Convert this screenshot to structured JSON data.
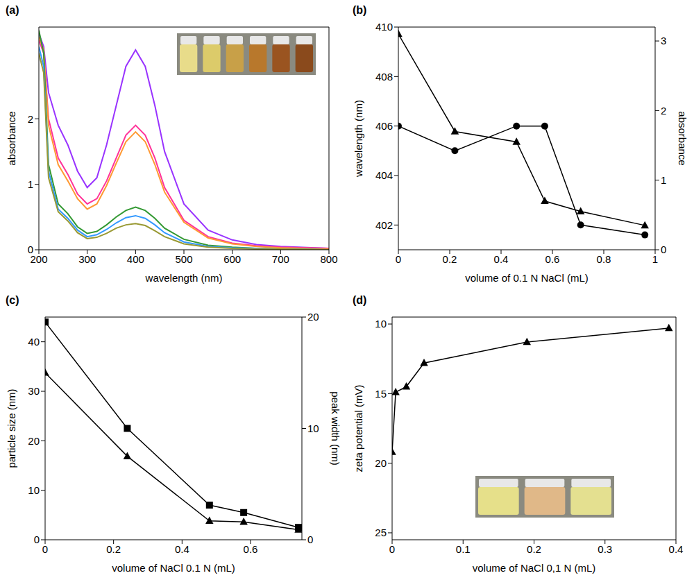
{
  "chart_data": [
    {
      "type": "line",
      "title": "(a)",
      "xlabel": "wavelength (nm)",
      "ylabel": "absorbance",
      "x": [
        200,
        210,
        220,
        240,
        260,
        280,
        300,
        320,
        340,
        360,
        380,
        400,
        420,
        440,
        460,
        500,
        550,
        600,
        650,
        700,
        800
      ],
      "xlim": [
        200,
        800
      ],
      "xticks": [
        200,
        300,
        400,
        500,
        600,
        700,
        800
      ],
      "ylim": [
        0,
        3.4
      ],
      "yticks": [
        0,
        1,
        2
      ],
      "series": [
        {
          "color": "#9933ff",
          "values": [
            3.3,
            3.1,
            2.4,
            1.9,
            1.6,
            1.2,
            0.95,
            1.1,
            1.6,
            2.2,
            2.8,
            3.05,
            2.8,
            2.2,
            1.5,
            0.7,
            0.3,
            0.15,
            0.08,
            0.05,
            0.02
          ]
        },
        {
          "color": "#ff3399",
          "values": [
            3.2,
            3.0,
            2.0,
            1.4,
            1.15,
            0.85,
            0.7,
            0.78,
            1.05,
            1.4,
            1.75,
            1.9,
            1.75,
            1.4,
            0.95,
            0.45,
            0.2,
            0.1,
            0.06,
            0.04,
            0.02
          ]
        },
        {
          "color": "#ff9933",
          "values": [
            3.25,
            3.05,
            1.9,
            1.3,
            1.05,
            0.78,
            0.62,
            0.7,
            0.98,
            1.32,
            1.65,
            1.8,
            1.65,
            1.3,
            0.88,
            0.42,
            0.18,
            0.09,
            0.05,
            0.03,
            0.01
          ]
        },
        {
          "color": "#339933",
          "values": [
            3.35,
            3.0,
            1.3,
            0.7,
            0.55,
            0.35,
            0.25,
            0.28,
            0.38,
            0.5,
            0.6,
            0.65,
            0.6,
            0.48,
            0.33,
            0.16,
            0.07,
            0.04,
            0.02,
            0.01,
            0
          ]
        },
        {
          "color": "#3399ff",
          "values": [
            3.1,
            2.8,
            1.2,
            0.62,
            0.48,
            0.3,
            0.2,
            0.23,
            0.31,
            0.41,
            0.49,
            0.52,
            0.48,
            0.38,
            0.26,
            0.12,
            0.05,
            0.03,
            0.02,
            0.01,
            0
          ]
        },
        {
          "color": "#999933",
          "values": [
            3.0,
            2.7,
            1.1,
            0.58,
            0.44,
            0.26,
            0.17,
            0.19,
            0.25,
            0.33,
            0.38,
            0.4,
            0.37,
            0.29,
            0.2,
            0.09,
            0.04,
            0.02,
            0.01,
            0.01,
            0
          ]
        }
      ]
    },
    {
      "type": "line",
      "title": "(b)",
      "xlabel": "volume of 0.1 N NaCl (mL)",
      "ylabel": "wavelength (nm)",
      "y2label": "absorbance",
      "x": [
        0,
        0.22,
        0.46,
        0.57,
        0.71,
        0.96
      ],
      "xlim": [
        0,
        1
      ],
      "xticks": [
        0,
        0.2,
        0.4,
        0.6,
        0.8,
        1
      ],
      "ylim": [
        401,
        410
      ],
      "yticks": [
        402,
        404,
        406,
        408,
        410
      ],
      "y2lim": [
        0,
        3.2
      ],
      "y2ticks": [
        0,
        1,
        2,
        3
      ],
      "series": [
        {
          "color": "#000000",
          "marker": "circle",
          "values": [
            406,
            405,
            406,
            406,
            402,
            401.6
          ]
        },
        {
          "color": "#000000",
          "marker": "triangle",
          "axis": "y2",
          "values": [
            3.1,
            1.7,
            1.55,
            0.7,
            0.55,
            0.35
          ]
        }
      ]
    },
    {
      "type": "line",
      "title": "(c)",
      "xlabel": "volume of NaCl 0.1 N (mL)",
      "ylabel": "particle size (nm)",
      "y2label": "peak width (nm)",
      "x": [
        0,
        0.24,
        0.48,
        0.58,
        0.74
      ],
      "xlim": [
        0,
        0.75
      ],
      "xticks": [
        0,
        0.2,
        0.4,
        0.6
      ],
      "ylim": [
        0,
        45
      ],
      "yticks": [
        0,
        10,
        20,
        30,
        40
      ],
      "y2lim": [
        0,
        20
      ],
      "y2ticks": [
        0,
        10,
        20
      ],
      "series": [
        {
          "color": "#000000",
          "marker": "square",
          "values": [
            44,
            22.5,
            7,
            5.5,
            2.5
          ]
        },
        {
          "color": "#000000",
          "marker": "triangle",
          "axis": "y2",
          "values": [
            15,
            7.5,
            1.7,
            1.6,
            0.9
          ]
        }
      ]
    },
    {
      "type": "line",
      "title": "(d)",
      "xlabel": "volume of NaCl 0,1 N (mL)",
      "ylabel": "zeta potential (mV)",
      "x": [
        0,
        0.005,
        0.02,
        0.045,
        0.19,
        0.39
      ],
      "xlim": [
        0,
        0.4
      ],
      "xticks": [
        0,
        0.1,
        0.2,
        0.3,
        0.4
      ],
      "ylim": [
        25.5,
        9.5
      ],
      "yticks": [
        10,
        15,
        20,
        25
      ],
      "series": [
        {
          "color": "#000000",
          "marker": "triangle",
          "values": [
            19.2,
            14.9,
            14.5,
            12.8,
            11.3,
            10.3
          ]
        }
      ]
    }
  ]
}
